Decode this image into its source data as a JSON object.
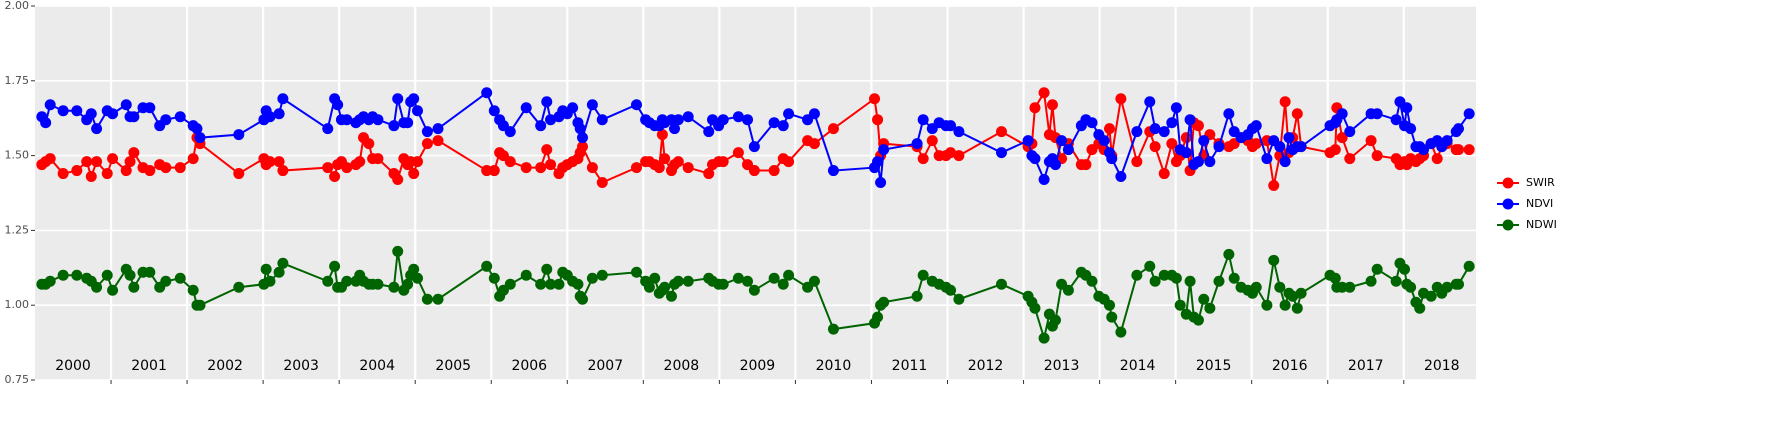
{
  "chart_data": {
    "type": "line",
    "x_labels": [
      "2000",
      "2001",
      "2002",
      "2003",
      "2004",
      "2005",
      "2006",
      "2007",
      "2008",
      "2009",
      "2010",
      "2011",
      "2012",
      "2013",
      "2014",
      "2015",
      "2016",
      "2017",
      "2018"
    ],
    "xlim": [
      2000,
      2018.95
    ],
    "xticks": [
      2001,
      2002,
      2003,
      2004,
      2005,
      2006,
      2007,
      2008,
      2009,
      2010,
      2011,
      2012,
      2013,
      2014,
      2015,
      2016,
      2017,
      2018
    ],
    "ylim": [
      0.75,
      2.0
    ],
    "yticks": [
      {
        "value": 0.75,
        "label": "0.75"
      },
      {
        "value": 1,
        "label": "1.00"
      },
      {
        "value": 1.25,
        "label": "1.25"
      },
      {
        "value": 1.5,
        "label": "1.50"
      },
      {
        "value": 1.75,
        "label": "1.75"
      },
      {
        "value": 2,
        "label": "2.00"
      }
    ],
    "grid": true,
    "legend": "right",
    "x": [
      2000.09,
      2000.14,
      2000.2,
      2000.37,
      2000.55,
      2000.68,
      2000.74,
      2000.81,
      2000.95,
      2001.02,
      2001.2,
      2001.25,
      2001.3,
      2001.42,
      2001.51,
      2001.64,
      2001.72,
      2001.91,
      2002.08,
      2002.13,
      2002.17,
      2002.68,
      2003.01,
      2003.04,
      2003.09,
      2003.21,
      2003.26,
      2003.85,
      2003.94,
      2003.98,
      2004.03,
      2004.1,
      2004.22,
      2004.27,
      2004.32,
      2004.39,
      2004.44,
      2004.51,
      2004.72,
      2004.77,
      2004.85,
      2004.9,
      2004.94,
      2004.98,
      2005.03,
      2005.16,
      2005.3,
      2005.94,
      2006.04,
      2006.11,
      2006.16,
      2006.25,
      2006.46,
      2006.65,
      2006.73,
      2006.78,
      2006.89,
      2006.94,
      2007.0,
      2007.07,
      2007.14,
      2007.17,
      2007.2,
      2007.33,
      2007.46,
      2007.91,
      2008.03,
      2008.08,
      2008.15,
      2008.21,
      2008.25,
      2008.28,
      2008.37,
      2008.41,
      2008.46,
      2008.59,
      2008.86,
      2008.91,
      2008.99,
      2009.05,
      2009.25,
      2009.37,
      2009.46,
      2009.72,
      2009.84,
      2009.91,
      2010.16,
      2010.25,
      2010.5,
      2011.04,
      2011.08,
      2011.12,
      2011.16,
      2011.6,
      2011.68,
      2011.8,
      2011.89,
      2011.98,
      2012.04,
      2012.15,
      2012.71,
      2013.06,
      2013.11,
      2013.15,
      2013.27,
      2013.34,
      2013.38,
      2013.42,
      2013.5,
      2013.59,
      2013.76,
      2013.82,
      2013.9,
      2013.99,
      2014.06,
      2014.13,
      2014.16,
      2014.28,
      2014.49,
      2014.66,
      2014.73,
      2014.85,
      2014.95,
      2015.01,
      2015.06,
      2015.14,
      2015.19,
      2015.24,
      2015.3,
      2015.37,
      2015.45,
      2015.57,
      2015.7,
      2015.77,
      2015.86,
      2015.95,
      2016.01,
      2016.06,
      2016.2,
      2016.29,
      2016.37,
      2016.44,
      2016.49,
      2016.54,
      2016.6,
      2016.65,
      2017.03,
      2017.1,
      2017.12,
      2017.19,
      2017.29,
      2017.57,
      2017.65,
      2017.9,
      2017.95,
      2018.01,
      2018.04,
      2018.09,
      2018.16,
      2018.21,
      2018.26,
      2018.36,
      2018.44,
      2018.5,
      2018.57,
      2018.69,
      2018.72,
      2018.86
    ],
    "series": [
      {
        "name": "SWIR",
        "color": "#ff0000",
        "values": [
          1.47,
          1.48,
          1.49,
          1.44,
          1.45,
          1.48,
          1.43,
          1.48,
          1.44,
          1.49,
          1.45,
          1.48,
          1.51,
          1.46,
          1.45,
          1.47,
          1.46,
          1.46,
          1.49,
          1.56,
          1.54,
          1.44,
          1.49,
          1.47,
          1.48,
          1.48,
          1.45,
          1.46,
          1.43,
          1.47,
          1.48,
          1.46,
          1.47,
          1.48,
          1.56,
          1.54,
          1.49,
          1.49,
          1.44,
          1.42,
          1.49,
          1.47,
          1.48,
          1.44,
          1.48,
          1.54,
          1.55,
          1.45,
          1.45,
          1.51,
          1.5,
          1.48,
          1.46,
          1.46,
          1.52,
          1.47,
          1.44,
          1.46,
          1.47,
          1.48,
          1.49,
          1.51,
          1.53,
          1.46,
          1.41,
          1.46,
          1.48,
          1.48,
          1.47,
          1.46,
          1.57,
          1.49,
          1.45,
          1.47,
          1.48,
          1.46,
          1.44,
          1.47,
          1.48,
          1.48,
          1.51,
          1.47,
          1.45,
          1.45,
          1.49,
          1.48,
          1.55,
          1.54,
          1.59,
          1.69,
          1.62,
          1.5,
          1.54,
          1.53,
          1.49,
          1.55,
          1.5,
          1.5,
          1.51,
          1.5,
          1.58,
          1.53,
          1.54,
          1.66,
          1.71,
          1.57,
          1.67,
          1.56,
          1.49,
          1.54,
          1.47,
          1.47,
          1.52,
          1.54,
          1.52,
          1.59,
          1.5,
          1.69,
          1.48,
          1.58,
          1.53,
          1.44,
          1.54,
          1.48,
          1.5,
          1.56,
          1.45,
          1.61,
          1.6,
          1.5,
          1.57,
          1.54,
          1.53,
          1.54,
          1.56,
          1.55,
          1.53,
          1.54,
          1.55,
          1.4,
          1.5,
          1.68,
          1.51,
          1.56,
          1.64,
          1.53,
          1.51,
          1.52,
          1.66,
          1.56,
          1.49,
          1.55,
          1.5,
          1.49,
          1.47,
          1.48,
          1.47,
          1.49,
          1.48,
          1.49,
          1.5,
          1.54,
          1.49,
          1.53,
          1.54,
          1.52,
          1.52,
          1.52
        ]
      },
      {
        "name": "NDVI",
        "color": "#0000ff",
        "values": [
          1.63,
          1.61,
          1.67,
          1.65,
          1.65,
          1.62,
          1.64,
          1.59,
          1.65,
          1.64,
          1.67,
          1.63,
          1.63,
          1.66,
          1.66,
          1.6,
          1.62,
          1.63,
          1.6,
          1.59,
          1.56,
          1.57,
          1.62,
          1.65,
          1.63,
          1.64,
          1.69,
          1.59,
          1.69,
          1.67,
          1.62,
          1.62,
          1.61,
          1.62,
          1.63,
          1.62,
          1.63,
          1.62,
          1.6,
          1.69,
          1.61,
          1.61,
          1.68,
          1.69,
          1.65,
          1.58,
          1.59,
          1.71,
          1.65,
          1.62,
          1.6,
          1.58,
          1.66,
          1.6,
          1.68,
          1.62,
          1.63,
          1.65,
          1.64,
          1.66,
          1.61,
          1.59,
          1.56,
          1.67,
          1.62,
          1.67,
          1.62,
          1.61,
          1.6,
          1.6,
          1.62,
          1.61,
          1.62,
          1.59,
          1.62,
          1.63,
          1.58,
          1.62,
          1.6,
          1.62,
          1.63,
          1.62,
          1.53,
          1.61,
          1.6,
          1.64,
          1.62,
          1.64,
          1.45,
          1.46,
          1.48,
          1.41,
          1.52,
          1.54,
          1.62,
          1.59,
          1.61,
          1.6,
          1.6,
          1.58,
          1.51,
          1.55,
          1.5,
          1.49,
          1.42,
          1.48,
          1.49,
          1.47,
          1.55,
          1.52,
          1.6,
          1.62,
          1.61,
          1.57,
          1.55,
          1.51,
          1.49,
          1.43,
          1.58,
          1.68,
          1.59,
          1.58,
          1.61,
          1.66,
          1.52,
          1.51,
          1.62,
          1.47,
          1.48,
          1.55,
          1.48,
          1.53,
          1.64,
          1.58,
          1.56,
          1.57,
          1.59,
          1.6,
          1.49,
          1.55,
          1.53,
          1.48,
          1.56,
          1.52,
          1.53,
          1.53,
          1.6,
          1.61,
          1.62,
          1.64,
          1.58,
          1.64,
          1.64,
          1.62,
          1.68,
          1.6,
          1.66,
          1.59,
          1.53,
          1.53,
          1.52,
          1.54,
          1.55,
          1.53,
          1.55,
          1.58,
          1.59,
          1.64
        ]
      },
      {
        "name": "NDWI",
        "color": "#006400",
        "values": [
          1.07,
          1.07,
          1.08,
          1.1,
          1.1,
          1.09,
          1.08,
          1.06,
          1.1,
          1.05,
          1.12,
          1.1,
          1.06,
          1.11,
          1.11,
          1.06,
          1.08,
          1.09,
          1.05,
          1.0,
          1.0,
          1.06,
          1.07,
          1.12,
          1.08,
          1.11,
          1.14,
          1.08,
          1.13,
          1.06,
          1.06,
          1.08,
          1.08,
          1.1,
          1.08,
          1.07,
          1.07,
          1.07,
          1.06,
          1.18,
          1.05,
          1.07,
          1.1,
          1.12,
          1.09,
          1.02,
          1.02,
          1.13,
          1.09,
          1.03,
          1.05,
          1.07,
          1.1,
          1.07,
          1.12,
          1.07,
          1.07,
          1.11,
          1.1,
          1.08,
          1.07,
          1.03,
          1.02,
          1.09,
          1.1,
          1.11,
          1.08,
          1.06,
          1.09,
          1.04,
          1.05,
          1.06,
          1.03,
          1.07,
          1.08,
          1.08,
          1.09,
          1.08,
          1.07,
          1.07,
          1.09,
          1.08,
          1.05,
          1.09,
          1.07,
          1.1,
          1.06,
          1.08,
          0.92,
          0.94,
          0.96,
          1.0,
          1.01,
          1.03,
          1.1,
          1.08,
          1.07,
          1.06,
          1.05,
          1.02,
          1.07,
          1.03,
          1.01,
          0.99,
          0.89,
          0.97,
          0.93,
          0.95,
          1.07,
          1.05,
          1.11,
          1.1,
          1.08,
          1.03,
          1.02,
          1.0,
          0.96,
          0.91,
          1.1,
          1.13,
          1.08,
          1.1,
          1.1,
          1.09,
          1.0,
          0.97,
          1.08,
          0.96,
          0.95,
          1.02,
          0.99,
          1.08,
          1.17,
          1.09,
          1.06,
          1.05,
          1.04,
          1.06,
          1.0,
          1.15,
          1.06,
          1.0,
          1.04,
          1.03,
          0.99,
          1.04,
          1.1,
          1.09,
          1.06,
          1.06,
          1.06,
          1.08,
          1.12,
          1.08,
          1.14,
          1.12,
          1.07,
          1.06,
          1.01,
          0.99,
          1.04,
          1.03,
          1.06,
          1.04,
          1.06,
          1.07,
          1.07,
          1.13
        ]
      }
    ]
  }
}
